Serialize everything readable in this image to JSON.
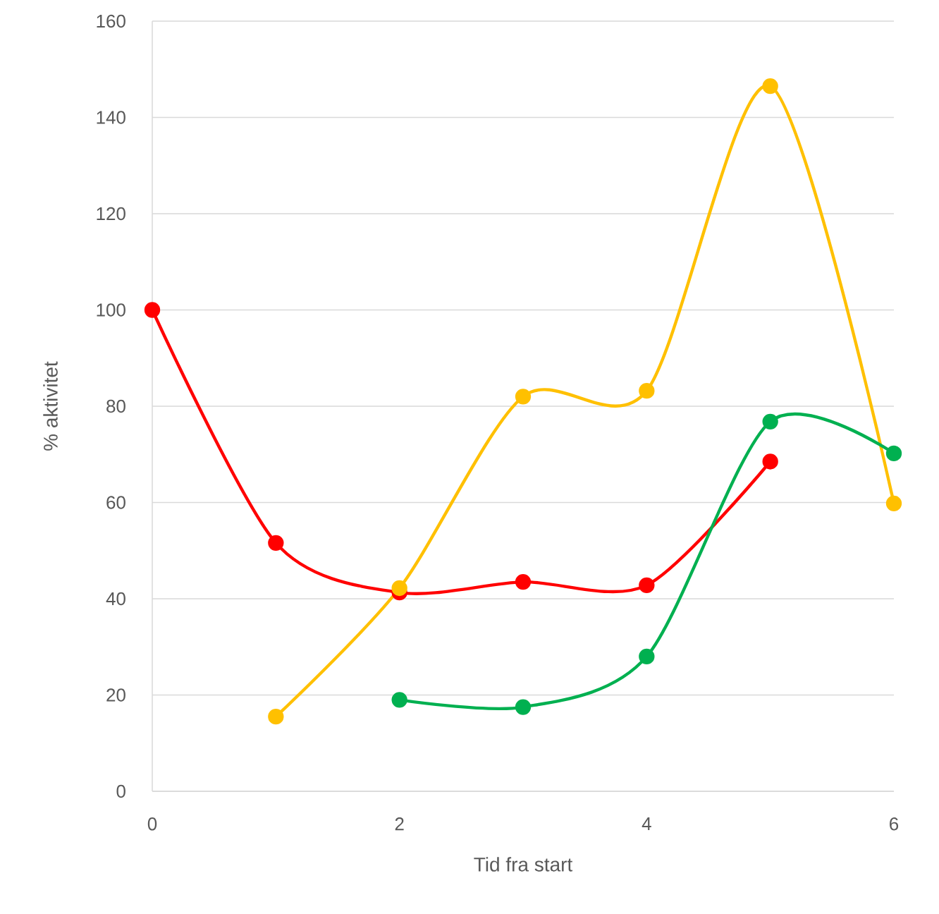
{
  "chart_data": {
    "type": "line",
    "xlabel": "Tid fra start",
    "ylabel": "% aktivitet",
    "xlim": [
      0,
      6
    ],
    "ylim": [
      0,
      160
    ],
    "xticks": [
      0,
      2,
      4,
      6
    ],
    "yticks": [
      0,
      20,
      40,
      60,
      80,
      100,
      120,
      140,
      160
    ],
    "grid": "y",
    "marker": "circle",
    "line_style": "solid",
    "series": [
      {
        "color": "#ff0000",
        "x": [
          0,
          1,
          2,
          3,
          4,
          5
        ],
        "values": [
          100,
          51.6,
          41.3,
          43.5,
          42.8,
          68.5
        ]
      },
      {
        "color": "#ffc000",
        "x": [
          1,
          2,
          3,
          4,
          5,
          6
        ],
        "values": [
          15.5,
          42.2,
          82,
          83.2,
          146.5,
          59.8
        ]
      },
      {
        "color": "#00b050",
        "x": [
          2,
          3,
          4,
          5,
          6
        ],
        "values": [
          19,
          17.5,
          28,
          76.8,
          70.2
        ]
      }
    ]
  }
}
